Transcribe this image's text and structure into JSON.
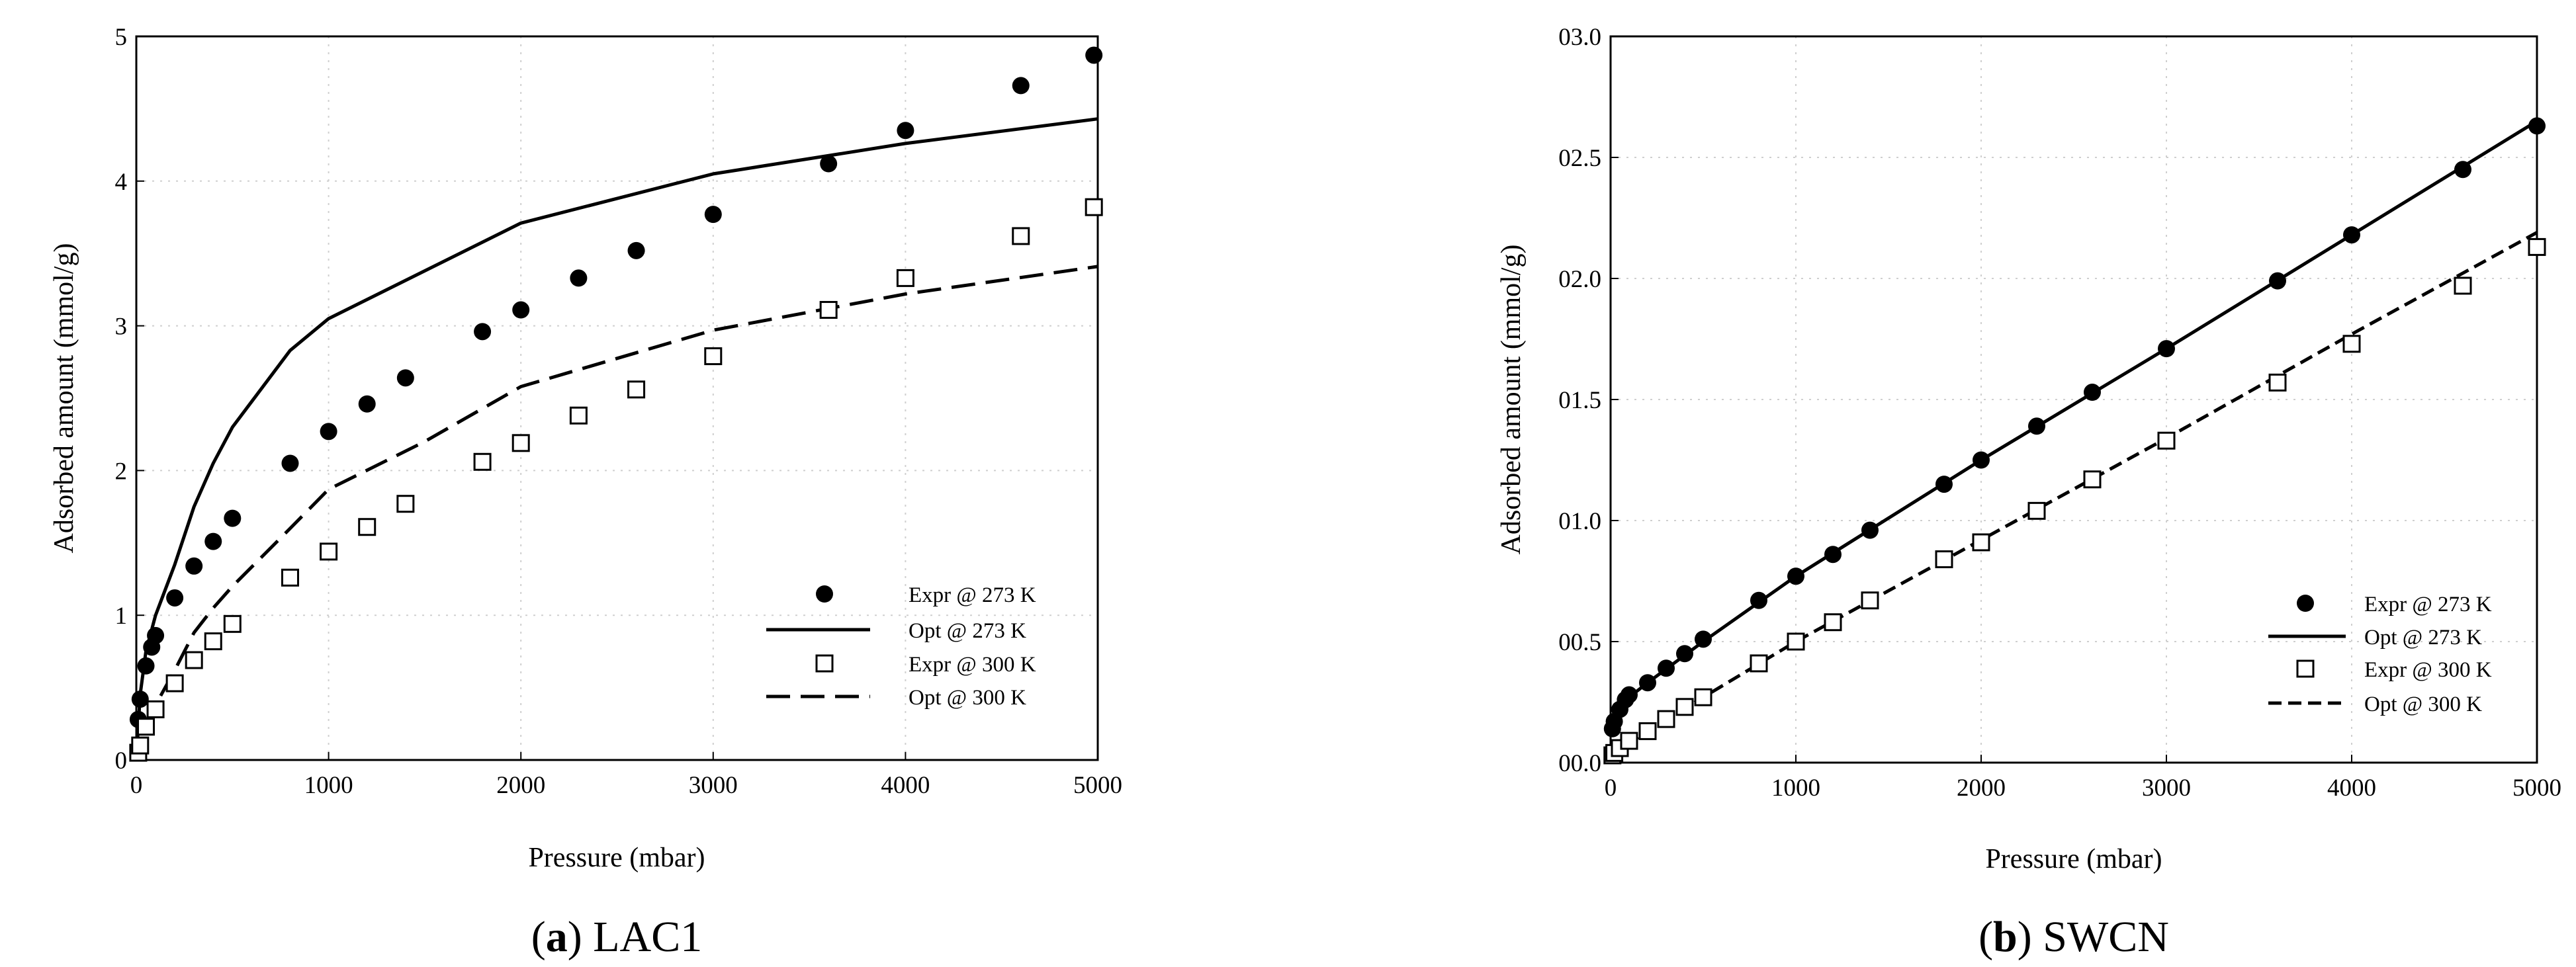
{
  "chart_data": [
    {
      "type": "scatter",
      "caption_letter": "a",
      "caption_name": "LAC1",
      "xlabel": "Pressure (mbar)",
      "ylabel": "Adsorbed amount (mmol/g)",
      "xlim": [
        0,
        5000
      ],
      "ylim": [
        0,
        5
      ],
      "xticks": [
        0,
        1000,
        2000,
        3000,
        4000,
        5000
      ],
      "xtick_labels": [
        "0",
        "1000",
        "2000",
        "3000",
        "4000",
        "5000"
      ],
      "yticks": [
        0,
        1,
        2,
        3,
        4,
        5
      ],
      "ytick_labels": [
        "0",
        "1",
        "2",
        "3",
        "4",
        "5"
      ],
      "grid": true,
      "legend_position": "bottom-right",
      "series": [
        {
          "name": "Expr @ 273 K",
          "kind": "points",
          "marker": "filled-circle",
          "x": [
            10,
            20,
            50,
            80,
            100,
            200,
            300,
            400,
            500,
            800,
            1000,
            1200,
            1400,
            1800,
            2000,
            2300,
            2600,
            3000,
            3600,
            4000,
            4600,
            4980
          ],
          "y": [
            0.28,
            0.42,
            0.65,
            0.78,
            0.86,
            1.12,
            1.34,
            1.51,
            1.67,
            2.05,
            2.27,
            2.46,
            2.64,
            2.96,
            3.11,
            3.33,
            3.52,
            3.77,
            4.12,
            4.35,
            4.66,
            4.87
          ]
        },
        {
          "name": "Opt  @ 273 K",
          "kind": "line",
          "dash": "solid",
          "x": [
            0,
            20,
            50,
            100,
            200,
            300,
            400,
            500,
            800,
            1000,
            1500,
            2000,
            3000,
            4000,
            5000
          ],
          "y": [
            0,
            0.45,
            0.75,
            1.0,
            1.35,
            1.75,
            2.05,
            2.3,
            2.83,
            3.05,
            3.38,
            3.71,
            4.05,
            4.26,
            4.43
          ]
        },
        {
          "name": "Expr @ 300 K",
          "kind": "points",
          "marker": "open-square",
          "x": [
            10,
            20,
            50,
            100,
            200,
            300,
            400,
            500,
            800,
            1000,
            1200,
            1400,
            1800,
            2000,
            2300,
            2600,
            3000,
            3600,
            4000,
            4600,
            4980
          ],
          "y": [
            0.05,
            0.1,
            0.23,
            0.35,
            0.53,
            0.69,
            0.82,
            0.94,
            1.26,
            1.44,
            1.61,
            1.77,
            2.06,
            2.19,
            2.38,
            2.56,
            2.79,
            3.11,
            3.33,
            3.62,
            3.82
          ]
        },
        {
          "name": "Opt  @ 300 K",
          "kind": "line",
          "dash": "dashed",
          "x": [
            0,
            50,
            100,
            200,
            300,
            400,
            500,
            800,
            1000,
            1500,
            2000,
            3000,
            4000,
            5000
          ],
          "y": [
            0,
            0.2,
            0.38,
            0.62,
            0.88,
            1.05,
            1.2,
            1.6,
            1.87,
            2.2,
            2.58,
            2.97,
            3.22,
            3.41
          ]
        }
      ]
    },
    {
      "type": "scatter",
      "caption_letter": "b",
      "caption_name": "SWCN",
      "xlabel": "Pressure (mbar)",
      "ylabel": "Adsorbed amount (mmol/g)",
      "xlim": [
        0,
        5000
      ],
      "ylim": [
        0,
        3.0
      ],
      "xticks": [
        0,
        1000,
        2000,
        3000,
        4000,
        5000
      ],
      "xtick_labels": [
        "0",
        "1000",
        "2000",
        "3000",
        "4000",
        "5000"
      ],
      "yticks": [
        0,
        0.5,
        1.0,
        1.5,
        2.0,
        2.5,
        3.0
      ],
      "ytick_labels": [
        "00.0",
        "00.5",
        "01.0",
        "01.5",
        "02.0",
        "02.5",
        "03.0"
      ],
      "grid": true,
      "legend_position": "bottom-right",
      "series": [
        {
          "name": "Expr @ 273 K",
          "kind": "points",
          "marker": "filled-circle",
          "x": [
            10,
            20,
            50,
            80,
            100,
            200,
            300,
            400,
            500,
            800,
            1000,
            1200,
            1400,
            1800,
            2000,
            2300,
            2600,
            3000,
            3600,
            4000,
            4600,
            5000
          ],
          "y": [
            0.14,
            0.17,
            0.22,
            0.26,
            0.28,
            0.33,
            0.39,
            0.45,
            0.51,
            0.67,
            0.77,
            0.86,
            0.96,
            1.15,
            1.25,
            1.39,
            1.53,
            1.71,
            1.99,
            2.18,
            2.45,
            2.63
          ]
        },
        {
          "name": "Opt  @ 273 K",
          "kind": "line",
          "dash": "solid",
          "x": [
            0,
            100,
            200,
            500,
            1000,
            2000,
            3000,
            4000,
            5000
          ],
          "y": [
            0.13,
            0.27,
            0.33,
            0.5,
            0.77,
            1.25,
            1.71,
            2.18,
            2.65
          ]
        },
        {
          "name": "Expr @ 300 K",
          "kind": "points",
          "marker": "open-square",
          "x": [
            10,
            20,
            50,
            100,
            200,
            300,
            400,
            500,
            800,
            1000,
            1200,
            1400,
            1800,
            2000,
            2300,
            2600,
            3000,
            3600,
            4000,
            4600,
            5000
          ],
          "y": [
            0.03,
            0.04,
            0.06,
            0.09,
            0.13,
            0.18,
            0.23,
            0.27,
            0.41,
            0.5,
            0.58,
            0.67,
            0.84,
            0.91,
            1.04,
            1.17,
            1.33,
            1.57,
            1.73,
            1.97,
            2.13
          ]
        },
        {
          "name": "Opt  @ 300 K",
          "kind": "line",
          "dash": "dashed",
          "x": [
            0,
            100,
            200,
            500,
            1000,
            2000,
            3000,
            4000,
            5000
          ],
          "y": [
            0.03,
            0.08,
            0.13,
            0.27,
            0.5,
            0.92,
            1.34,
            1.77,
            2.19
          ]
        }
      ]
    }
  ]
}
